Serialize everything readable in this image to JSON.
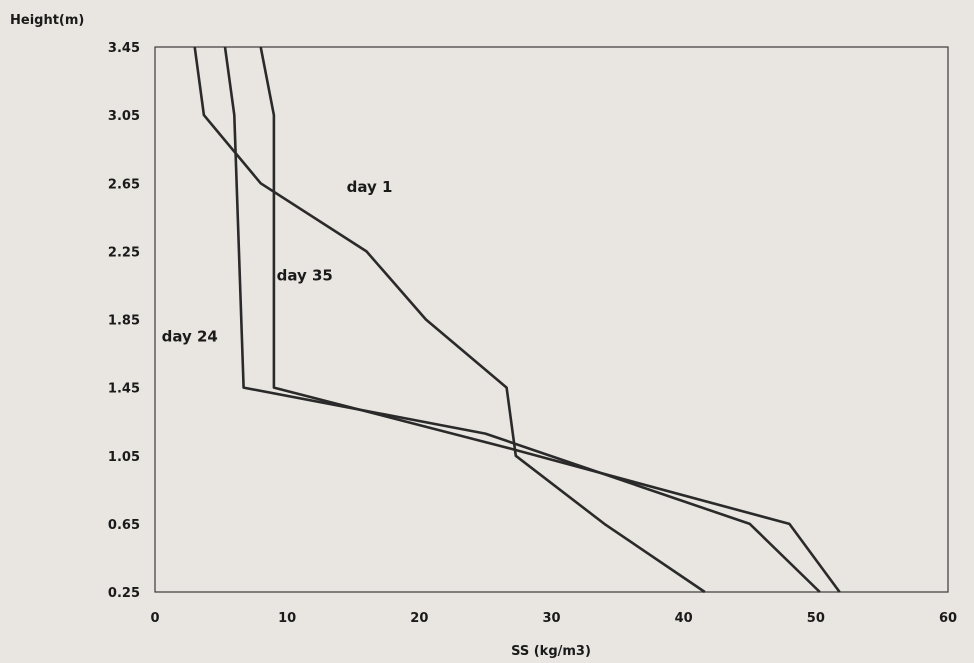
{
  "chart_data": {
    "type": "line",
    "xlabel": "SS (kg/m3)",
    "ylabel": "Height(m)",
    "xlim": [
      0,
      60
    ],
    "ylim": [
      0.25,
      3.45
    ],
    "x_ticks": [
      "0",
      "10",
      "20",
      "30",
      "40",
      "50",
      "60"
    ],
    "y_ticks": [
      "0.25",
      "0.65",
      "1.05",
      "1.45",
      "1.85",
      "2.25",
      "2.65",
      "3.05",
      "3.45"
    ],
    "grid": false,
    "series": [
      {
        "name": "day 1",
        "points": [
          [
            3,
            3.45
          ],
          [
            3.7,
            3.05
          ],
          [
            8,
            2.65
          ],
          [
            16,
            2.25
          ],
          [
            20.5,
            1.85
          ],
          [
            26.6,
            1.45
          ],
          [
            27.3,
            1.05
          ],
          [
            34,
            0.65
          ],
          [
            41.6,
            0.25
          ]
        ],
        "label_at": [
          14.5,
          2.6
        ]
      },
      {
        "name": "day 35",
        "points": [
          [
            8,
            3.45
          ],
          [
            9,
            3.05
          ],
          [
            9,
            1.45
          ],
          [
            26.5,
            1.1
          ],
          [
            48,
            0.65
          ],
          [
            51.8,
            0.25
          ]
        ],
        "label_at": [
          9.2,
          2.08
        ]
      },
      {
        "name": "day 24",
        "points": [
          [
            5.3,
            3.45
          ],
          [
            6,
            3.05
          ],
          [
            6.7,
            1.45
          ],
          [
            25,
            1.18
          ],
          [
            45,
            0.65
          ],
          [
            50.3,
            0.25
          ]
        ],
        "label_at": [
          0.5,
          1.72
        ]
      }
    ]
  }
}
